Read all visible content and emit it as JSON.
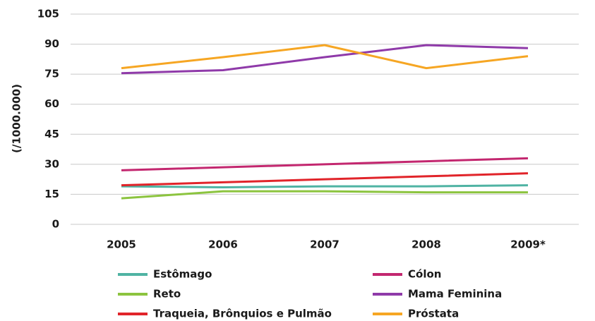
{
  "chart_data": {
    "type": "line",
    "y_label": "(/1000.000)",
    "categories": [
      "2005",
      "2006",
      "2007",
      "2008",
      "2009*"
    ],
    "ylim": [
      0,
      105
    ],
    "yticks": [
      0,
      15,
      30,
      45,
      60,
      75,
      90,
      105
    ],
    "grid": true,
    "series": [
      {
        "name": "Estômago",
        "color": "#4fb3a3",
        "values": [
          19,
          18.5,
          19,
          19,
          19.5
        ]
      },
      {
        "name": "Cólon",
        "color": "#c3276f",
        "values": [
          27,
          28.5,
          30,
          31.5,
          33
        ]
      },
      {
        "name": "Reto",
        "color": "#8cc43f",
        "values": [
          13,
          16.5,
          16.5,
          16,
          16
        ]
      },
      {
        "name": "Mama Feminina",
        "color": "#8f3aa9",
        "values": [
          75.5,
          77,
          83.5,
          89.5,
          88
        ]
      },
      {
        "name": "Traqueia, Brônquios e Pulmão",
        "color": "#e1242a",
        "values": [
          19.5,
          21,
          22.5,
          24,
          25.5
        ]
      },
      {
        "name": "Próstata",
        "color": "#f6a623",
        "values": [
          78,
          83.5,
          89.5,
          78,
          84
        ]
      }
    ]
  }
}
